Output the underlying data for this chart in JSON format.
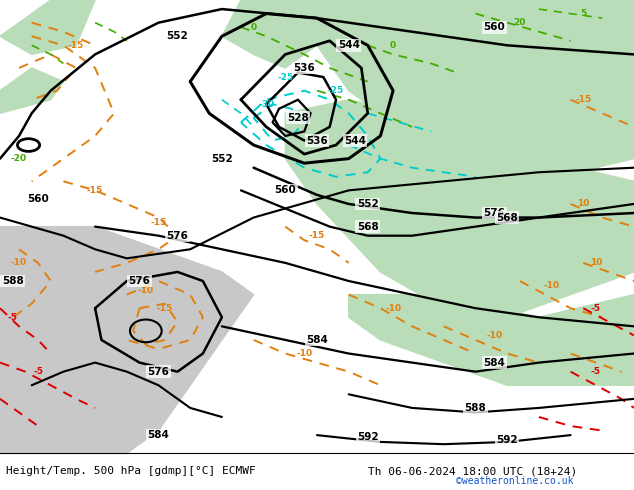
{
  "title_left": "Height/Temp. 500 hPa [gdmp][°C] ECMWF",
  "title_right": "Th 06-06-2024 18:00 UTC (18+24)",
  "watermark": "©weatheronline.co.uk",
  "fig_width": 6.34,
  "fig_height": 4.9,
  "dpi": 100,
  "bg_light_green": "#b8ddb8",
  "bg_gray": "#c8c8c8",
  "bg_green_low": "#a8d4a0",
  "black_lw": 1.8,
  "orange_color": "#e08010",
  "red_color": "#dd0000",
  "cyan_color": "#00cccc",
  "green_color": "#44aa00"
}
